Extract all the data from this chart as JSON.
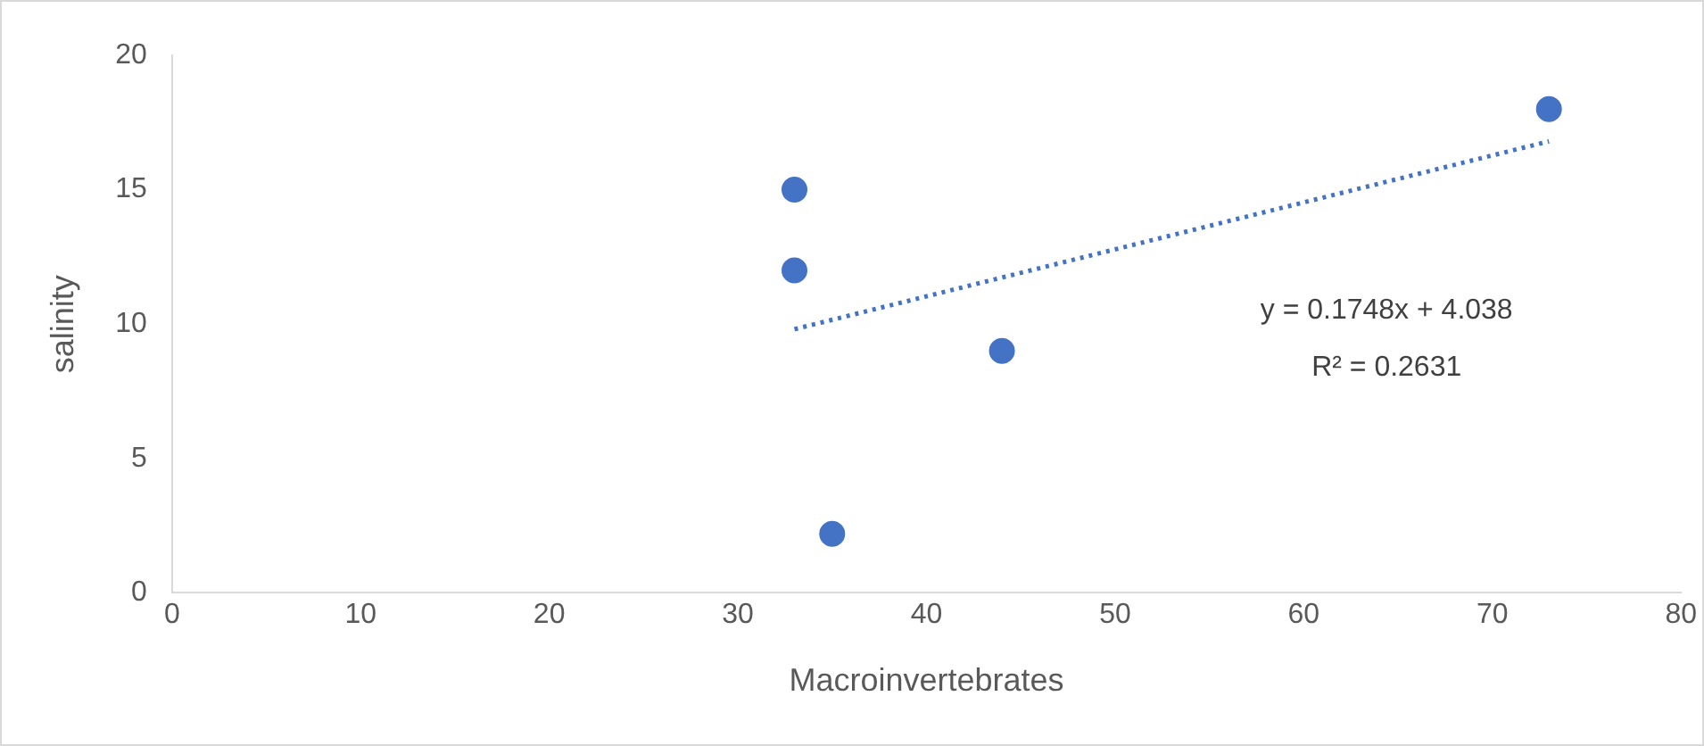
{
  "chart_data": {
    "type": "scatter",
    "xlabel": "Macroinvertebrates",
    "ylabel": "salinity",
    "xlim": [
      0,
      80
    ],
    "xticks": [
      0,
      10,
      20,
      30,
      40,
      50,
      60,
      70,
      80
    ],
    "ylim": [
      0,
      20
    ],
    "yticks": [
      0,
      5,
      10,
      15,
      20
    ],
    "grid": false,
    "legend": false,
    "series": [
      {
        "type": "scatter",
        "color": "#4472c4",
        "marker": "circle",
        "x": [
          33,
          33,
          35,
          44,
          73
        ],
        "values": [
          15,
          12,
          2.2,
          9,
          18
        ]
      },
      {
        "type": "line",
        "color": "#4472c4",
        "marker": "none",
        "line_style": "dotted",
        "x": [
          33,
          73
        ],
        "values": [
          9.81,
          16.8
        ]
      }
    ],
    "annotations": [
      "y = 0.1748x + 4.038",
      "R² = 0.2631"
    ]
  }
}
